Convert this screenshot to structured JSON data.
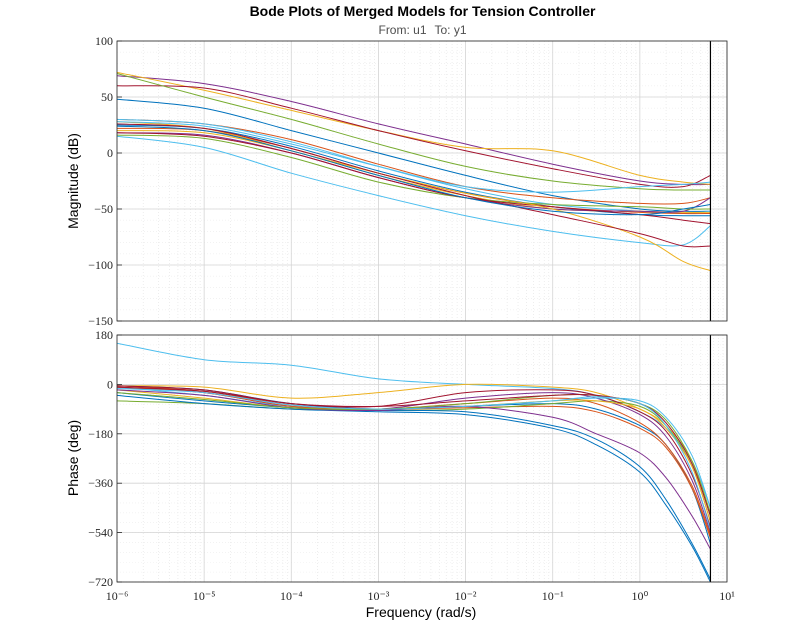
{
  "title": "Bode Plots of Merged Models for Tension Controller",
  "subtitle": {
    "from": "From: u1",
    "to": "To: y1"
  },
  "chart_data": [
    {
      "type": "line",
      "panel": "magnitude",
      "xlabel": "",
      "ylabel": "Magnitude (dB)",
      "xscale": "log",
      "xlim_exponents": [
        -6,
        1
      ],
      "ylim": [
        -150,
        100
      ],
      "yticks": [
        -150,
        -100,
        -50,
        0,
        50,
        100
      ],
      "grid": true,
      "marker_x_exponent": 0.81,
      "x_exponents": [
        -6,
        -5,
        -4,
        -3,
        -2,
        -1,
        0,
        0.5,
        0.81
      ],
      "series": [
        {
          "color": "#7e2f8e",
          "values": [
            69,
            62,
            46,
            26,
            8,
            -10,
            -25,
            -28,
            -28
          ]
        },
        {
          "color": "#edb120",
          "values": [
            72,
            56,
            38,
            20,
            5,
            2,
            -20,
            -26,
            -28
          ]
        },
        {
          "color": "#a2142f",
          "values": [
            60,
            58,
            40,
            20,
            2,
            -14,
            -28,
            -30,
            -20
          ]
        },
        {
          "color": "#77ac30",
          "values": [
            71,
            50,
            30,
            8,
            -12,
            -25,
            -32,
            -33,
            -33
          ]
        },
        {
          "color": "#0072bd",
          "values": [
            48,
            40,
            20,
            0,
            -20,
            -38,
            -50,
            -52,
            -52
          ]
        },
        {
          "color": "#d95319",
          "values": [
            30,
            26,
            12,
            -10,
            -30,
            -40,
            -45,
            -45,
            -40
          ]
        },
        {
          "color": "#4dbeee",
          "values": [
            30,
            26,
            10,
            -12,
            -32,
            -46,
            -52,
            -54,
            -52
          ]
        },
        {
          "color": "#0072bd",
          "values": [
            25,
            22,
            6,
            -16,
            -35,
            -48,
            -55,
            -56,
            -56
          ]
        },
        {
          "color": "#d95319",
          "values": [
            22,
            20,
            4,
            -18,
            -36,
            -48,
            -53,
            -54,
            -54
          ]
        },
        {
          "color": "#edb120",
          "values": [
            20,
            18,
            2,
            -20,
            -38,
            -50,
            -52,
            -53,
            -53
          ]
        },
        {
          "color": "#7e2f8e",
          "values": [
            18,
            16,
            0,
            -22,
            -40,
            -50,
            -52,
            -52,
            -40
          ]
        },
        {
          "color": "#77ac30",
          "values": [
            16,
            13,
            -4,
            -26,
            -40,
            -46,
            -48,
            -50,
            -50
          ]
        },
        {
          "color": "#4dbeee",
          "values": [
            15,
            5,
            -18,
            -38,
            -56,
            -70,
            -80,
            -82,
            -65
          ]
        },
        {
          "color": "#a2142f",
          "values": [
            18,
            15,
            0,
            -22,
            -40,
            -48,
            -55,
            -60,
            -63
          ]
        },
        {
          "color": "#edb120",
          "values": [
            28,
            22,
            2,
            -18,
            -36,
            -50,
            -75,
            -97,
            -105
          ]
        },
        {
          "color": "#a2142f",
          "values": [
            26,
            22,
            4,
            -18,
            -38,
            -55,
            -72,
            -83,
            -83
          ]
        },
        {
          "color": "#0072bd",
          "values": [
            24,
            20,
            2,
            -20,
            -40,
            -52,
            -55,
            -50,
            -46
          ]
        },
        {
          "color": "#4dbeee",
          "values": [
            28,
            24,
            8,
            -12,
            -30,
            -35,
            -30,
            -28,
            -26
          ]
        }
      ]
    },
    {
      "type": "line",
      "panel": "phase",
      "xlabel": "Frequency  (rad/s)",
      "ylabel": "Phase (deg)",
      "xscale": "log",
      "xlim_exponents": [
        -6,
        1
      ],
      "xtick_exponents": [
        -6,
        -5,
        -4,
        -3,
        -2,
        -1,
        0,
        1
      ],
      "ylim": [
        -720,
        180
      ],
      "yticks": [
        -720,
        -540,
        -360,
        -180,
        0,
        180
      ],
      "grid": true,
      "marker_x_exponent": 0.81,
      "x_exponents": [
        -6,
        -5,
        -4,
        -3,
        -2,
        -1,
        -0.5,
        0,
        0.3,
        0.6,
        0.81
      ],
      "series": [
        {
          "color": "#4dbeee",
          "values": [
            150,
            90,
            70,
            20,
            0,
            -15,
            -40,
            -100,
            -160,
            -280,
            -450
          ]
        },
        {
          "color": "#edb120",
          "values": [
            -5,
            -10,
            -50,
            -30,
            0,
            -10,
            -30,
            -90,
            -150,
            -280,
            -470
          ]
        },
        {
          "color": "#0072bd",
          "values": [
            -5,
            -20,
            -70,
            -90,
            -80,
            -70,
            -90,
            -150,
            -220,
            -380,
            -580
          ]
        },
        {
          "color": "#d95319",
          "values": [
            -5,
            -25,
            -75,
            -90,
            -85,
            -80,
            -100,
            -160,
            -230,
            -380,
            -560
          ]
        },
        {
          "color": "#77ac30",
          "values": [
            -60,
            -70,
            -90,
            -95,
            -90,
            -70,
            -60,
            -80,
            -150,
            -300,
            -500
          ]
        },
        {
          "color": "#7e2f8e",
          "values": [
            -10,
            -30,
            -80,
            -90,
            -50,
            -30,
            -50,
            -110,
            -190,
            -350,
            -540
          ]
        },
        {
          "color": "#a2142f",
          "values": [
            -5,
            -20,
            -70,
            -80,
            -30,
            -20,
            -40,
            -100,
            -170,
            -330,
            -520
          ]
        },
        {
          "color": "#4dbeee",
          "values": [
            -10,
            -40,
            -80,
            -90,
            -80,
            -60,
            -50,
            -60,
            -120,
            -260,
            -450
          ]
        },
        {
          "color": "#0072bd",
          "values": [
            -30,
            -60,
            -85,
            -95,
            -100,
            -150,
            -200,
            -300,
            -420,
            -580,
            -710
          ]
        },
        {
          "color": "#0072bd",
          "values": [
            -40,
            -70,
            -90,
            -100,
            -110,
            -160,
            -220,
            -320,
            -440,
            -590,
            -720
          ]
        },
        {
          "color": "#d95319",
          "values": [
            -10,
            -30,
            -80,
            -90,
            -70,
            -50,
            -70,
            -140,
            -220,
            -370,
            -550
          ]
        },
        {
          "color": "#edb120",
          "values": [
            -20,
            -50,
            -85,
            -90,
            -80,
            -60,
            -60,
            -90,
            -160,
            -300,
            -500
          ]
        },
        {
          "color": "#7e2f8e",
          "values": [
            -20,
            -40,
            -85,
            -95,
            -80,
            -120,
            -180,
            -250,
            -340,
            -480,
            -600
          ]
        },
        {
          "color": "#77ac30",
          "values": [
            -30,
            -55,
            -85,
            -90,
            -70,
            -40,
            -40,
            -70,
            -130,
            -280,
            -470
          ]
        },
        {
          "color": "#a2142f",
          "values": [
            -10,
            -25,
            -70,
            -80,
            -60,
            -40,
            -40,
            -70,
            -140,
            -290,
            -480
          ]
        },
        {
          "color": "#4dbeee",
          "values": [
            -15,
            -30,
            -75,
            -90,
            -80,
            -60,
            -45,
            -70,
            -150,
            -320,
            -530
          ]
        }
      ]
    }
  ]
}
